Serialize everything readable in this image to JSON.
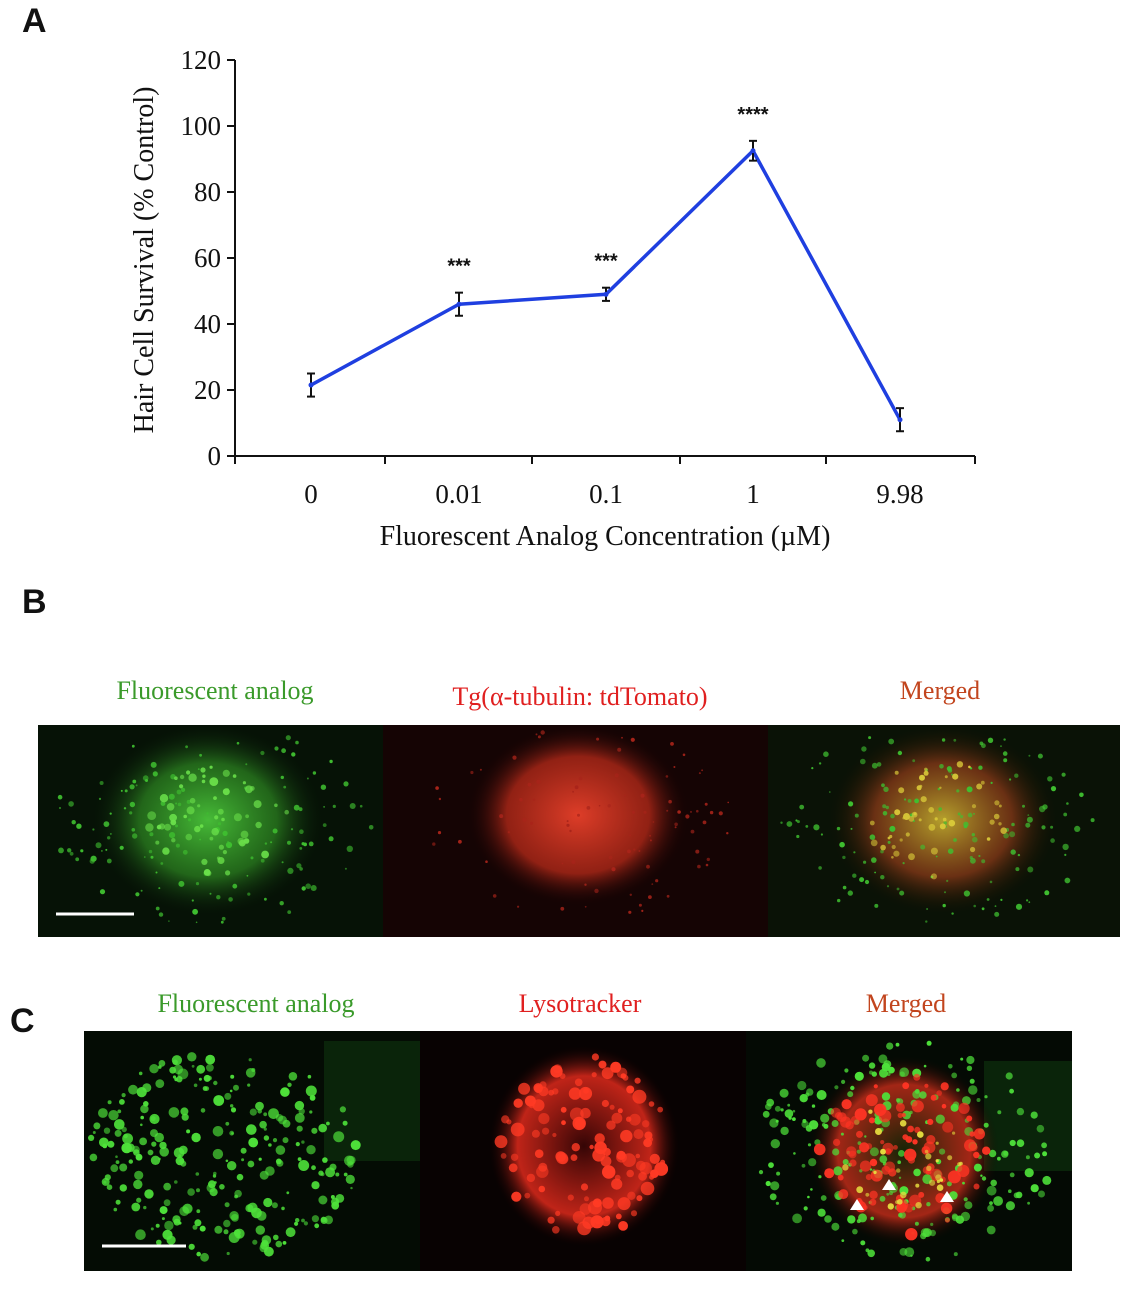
{
  "panels": {
    "a": "A",
    "b": "B",
    "c": "C"
  },
  "chart_data": {
    "type": "line",
    "x": [
      "0",
      "0.01",
      "0.1",
      "1",
      "9.98"
    ],
    "series": [
      {
        "values": [
          21.5,
          46,
          49,
          92.5,
          11
        ],
        "errors": [
          3.5,
          3.5,
          2,
          3,
          3.5
        ],
        "color": "#1f3fe0"
      }
    ],
    "annotations": [
      "",
      "***",
      "***",
      "****",
      ""
    ],
    "xlabel": "Fluorescent Analog Concentration (µM)",
    "ylabel": "Hair Cell Survival (% Control)",
    "ylim": [
      0,
      120
    ],
    "yticks": [
      "0",
      "20",
      "40",
      "60",
      "80",
      "100",
      "120"
    ],
    "grid": false
  },
  "panel_b": {
    "labels": [
      "Fluorescent analog",
      "Tg(α-tubulin: tdTomato)",
      "Merged"
    ],
    "label_colors": [
      "#3a9a2a",
      "#e02020",
      "#c2451e"
    ]
  },
  "panel_c": {
    "labels": [
      "Fluorescent analog",
      "Lysotracker",
      "Merged"
    ],
    "label_colors": [
      "#3a9a2a",
      "#e02020",
      "#c2451e"
    ]
  }
}
